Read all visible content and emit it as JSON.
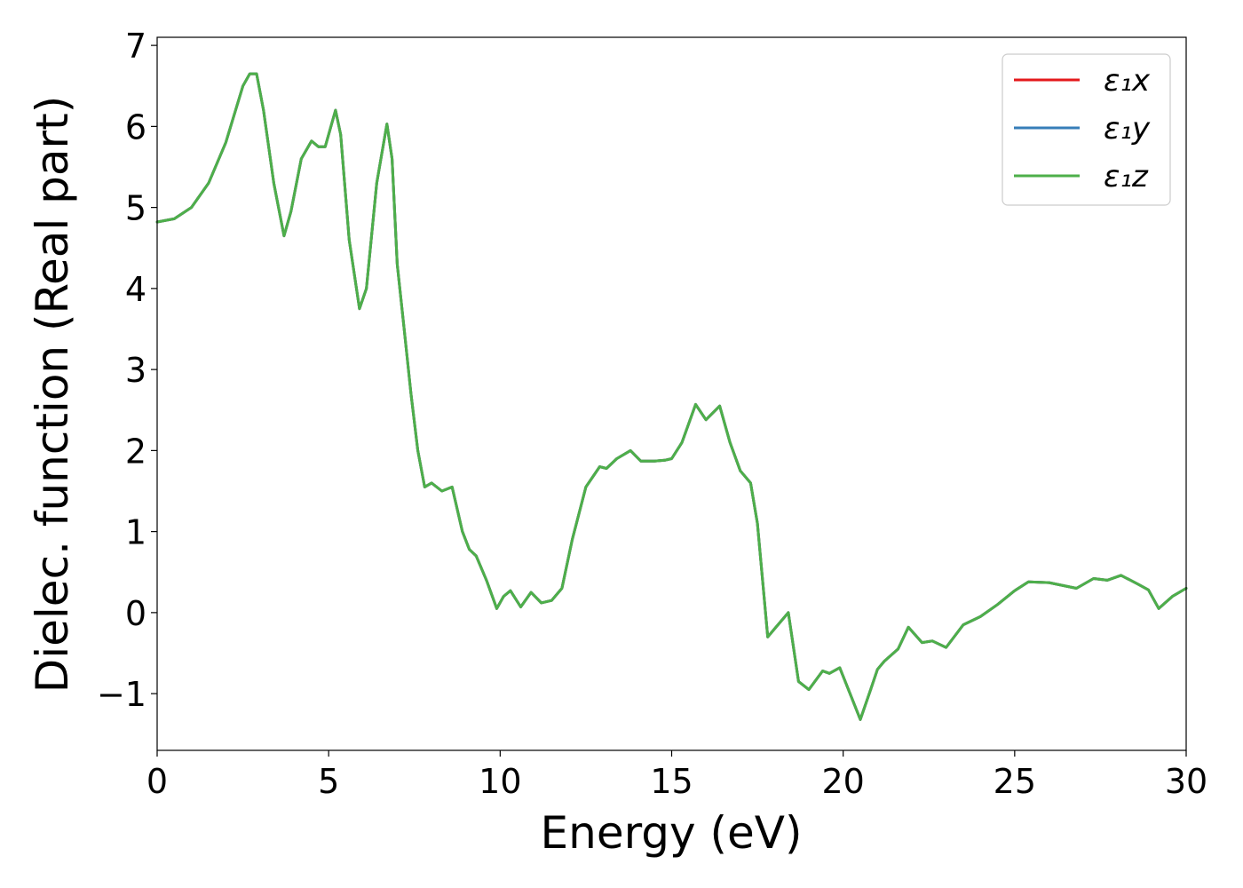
{
  "chart_data": {
    "type": "line",
    "title": "",
    "xlabel": "Energy (eV)",
    "ylabel": "Dielec. function (Real part)",
    "xlim": [
      0,
      30
    ],
    "ylim": [
      -1.7,
      7.1
    ],
    "xticks": [
      0,
      5,
      10,
      15,
      20,
      25,
      30
    ],
    "xtick_labels": [
      "0",
      "5",
      "10",
      "15",
      "20",
      "25",
      "30"
    ],
    "yticks": [
      -1,
      0,
      1,
      2,
      3,
      4,
      5,
      6,
      7
    ],
    "ytick_labels": [
      "−1",
      "0",
      "1",
      "2",
      "3",
      "4",
      "5",
      "6",
      "7"
    ],
    "grid": false,
    "legend_position": "top-right",
    "x": [
      0,
      0.5,
      1,
      1.5,
      2,
      2.5,
      2.7,
      2.9,
      3.1,
      3.4,
      3.7,
      3.9,
      4.2,
      4.5,
      4.7,
      4.9,
      5.2,
      5.35,
      5.6,
      5.9,
      6.1,
      6.4,
      6.7,
      6.85,
      7.0,
      7.2,
      7.4,
      7.6,
      7.8,
      8.0,
      8.3,
      8.6,
      8.9,
      9.1,
      9.3,
      9.6,
      9.9,
      10.1,
      10.3,
      10.6,
      10.9,
      11.2,
      11.5,
      11.8,
      12.1,
      12.5,
      12.9,
      13.1,
      13.4,
      13.8,
      14.1,
      14.5,
      14.8,
      15.0,
      15.3,
      15.7,
      16.0,
      16.4,
      16.7,
      17.0,
      17.3,
      17.5,
      17.8,
      18.0,
      18.4,
      18.7,
      19.0,
      19.4,
      19.6,
      19.9,
      20.2,
      20.5,
      20.8,
      21.0,
      21.2,
      21.6,
      21.9,
      22.3,
      22.6,
      23.0,
      23.5,
      24.0,
      24.5,
      25.0,
      25.4,
      26.0,
      26.8,
      27.3,
      27.7,
      28.1,
      28.6,
      28.9,
      29.2,
      29.6,
      30.0
    ],
    "series": [
      {
        "name": "ε₁x",
        "color": "#e41a1c",
        "values": [
          4.82,
          4.86,
          5.0,
          5.3,
          5.8,
          6.5,
          6.65,
          6.65,
          6.2,
          5.3,
          4.65,
          4.95,
          5.6,
          5.82,
          5.75,
          5.75,
          6.2,
          5.9,
          4.6,
          3.75,
          4.0,
          5.3,
          6.03,
          5.6,
          4.3,
          3.5,
          2.7,
          2.0,
          1.55,
          1.6,
          1.5,
          1.55,
          1.0,
          0.78,
          0.7,
          0.4,
          0.05,
          0.2,
          0.27,
          0.07,
          0.25,
          0.12,
          0.15,
          0.3,
          0.9,
          1.55,
          1.8,
          1.78,
          1.9,
          2.0,
          1.87,
          1.87,
          1.88,
          1.9,
          2.1,
          2.57,
          2.38,
          2.55,
          2.1,
          1.75,
          1.6,
          1.1,
          -0.3,
          -0.2,
          0.0,
          -0.85,
          -0.95,
          -0.72,
          -0.75,
          -0.68,
          -1.0,
          -1.32,
          -0.95,
          -0.7,
          -0.6,
          -0.45,
          -0.18,
          -0.37,
          -0.35,
          -0.43,
          -0.15,
          -0.05,
          0.1,
          0.27,
          0.38,
          0.37,
          0.3,
          0.42,
          0.4,
          0.46,
          0.35,
          0.28,
          0.05,
          0.2,
          0.3
        ]
      },
      {
        "name": "ε₁y",
        "color": "#377eb8",
        "values": [
          4.82,
          4.86,
          5.0,
          5.3,
          5.8,
          6.5,
          6.65,
          6.65,
          6.2,
          5.3,
          4.65,
          4.95,
          5.6,
          5.82,
          5.75,
          5.75,
          6.2,
          5.9,
          4.6,
          3.75,
          4.0,
          5.3,
          6.03,
          5.6,
          4.3,
          3.5,
          2.7,
          2.0,
          1.55,
          1.6,
          1.5,
          1.55,
          1.0,
          0.78,
          0.7,
          0.4,
          0.05,
          0.2,
          0.27,
          0.07,
          0.25,
          0.12,
          0.15,
          0.3,
          0.9,
          1.55,
          1.8,
          1.78,
          1.9,
          2.0,
          1.87,
          1.87,
          1.88,
          1.9,
          2.1,
          2.57,
          2.38,
          2.55,
          2.1,
          1.75,
          1.6,
          1.1,
          -0.3,
          -0.2,
          0.0,
          -0.85,
          -0.95,
          -0.72,
          -0.75,
          -0.68,
          -1.0,
          -1.32,
          -0.95,
          -0.7,
          -0.6,
          -0.45,
          -0.18,
          -0.37,
          -0.35,
          -0.43,
          -0.15,
          -0.05,
          0.1,
          0.27,
          0.38,
          0.37,
          0.3,
          0.42,
          0.4,
          0.46,
          0.35,
          0.28,
          0.05,
          0.2,
          0.3
        ]
      },
      {
        "name": "ε₁z",
        "color": "#4daf4a",
        "values": [
          4.82,
          4.86,
          5.0,
          5.3,
          5.8,
          6.5,
          6.65,
          6.65,
          6.2,
          5.3,
          4.65,
          4.95,
          5.6,
          5.82,
          5.75,
          5.75,
          6.2,
          5.9,
          4.6,
          3.75,
          4.0,
          5.3,
          6.03,
          5.6,
          4.3,
          3.5,
          2.7,
          2.0,
          1.55,
          1.6,
          1.5,
          1.55,
          1.0,
          0.78,
          0.7,
          0.4,
          0.05,
          0.2,
          0.27,
          0.07,
          0.25,
          0.12,
          0.15,
          0.3,
          0.9,
          1.55,
          1.8,
          1.78,
          1.9,
          2.0,
          1.87,
          1.87,
          1.88,
          1.9,
          2.1,
          2.57,
          2.38,
          2.55,
          2.1,
          1.75,
          1.6,
          1.1,
          -0.3,
          -0.2,
          0.0,
          -0.85,
          -0.95,
          -0.72,
          -0.75,
          -0.68,
          -1.0,
          -1.32,
          -0.95,
          -0.7,
          -0.6,
          -0.45,
          -0.18,
          -0.37,
          -0.35,
          -0.43,
          -0.15,
          -0.05,
          0.1,
          0.27,
          0.38,
          0.37,
          0.3,
          0.42,
          0.4,
          0.46,
          0.35,
          0.28,
          0.05,
          0.2,
          0.3
        ]
      }
    ]
  }
}
